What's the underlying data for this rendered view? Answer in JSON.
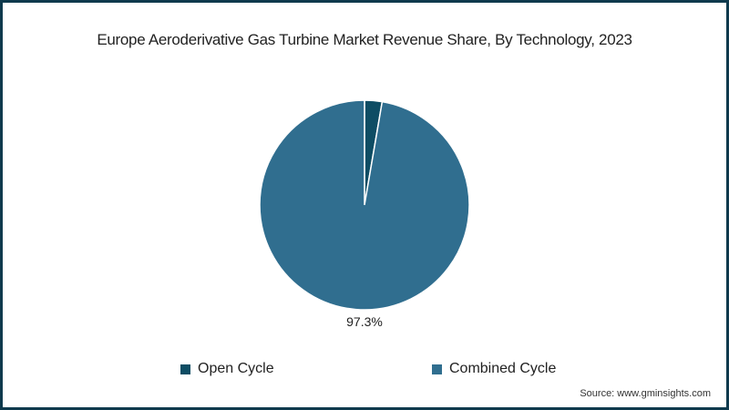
{
  "chart_data": {
    "type": "pie",
    "title": "Europe Aeroderivative Gas Turbine Market Revenue Share, By Technology, 2023",
    "categories": [
      "Open Cycle",
      "Combined Cycle"
    ],
    "values": [
      2.7,
      97.3
    ],
    "colors": [
      "#0e4d64",
      "#306e8f"
    ],
    "data_labels": [
      "",
      "97.3%"
    ],
    "legend_position": "bottom",
    "source": "Source: www.gminsights.com"
  },
  "legend": [
    {
      "label": "Open Cycle",
      "color": "#0e4d64"
    },
    {
      "label": "Combined Cycle",
      "color": "#306e8f"
    }
  ],
  "label_combined": "97.3%"
}
